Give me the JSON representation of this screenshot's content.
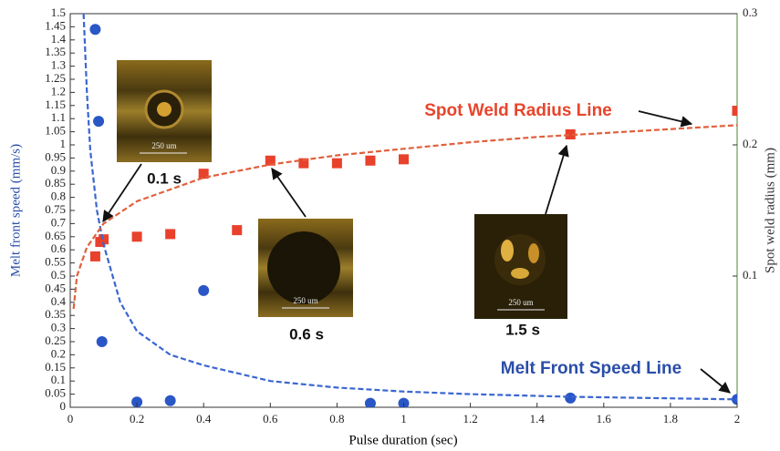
{
  "chart_data": {
    "type": "scatter",
    "xlabel": "Pulse duration (sec)",
    "ylabel": "Melt front speed (mm/s)",
    "y2label": "Spot weld radius (mm)",
    "xlim": [
      0,
      2
    ],
    "xticks": [
      0,
      0.2,
      0.4,
      0.6,
      0.8,
      1,
      1.2,
      1.4,
      1.6,
      1.8,
      2
    ],
    "ylim": [
      0,
      1.5
    ],
    "yticks": [
      0,
      0.05,
      0.1,
      0.15,
      0.2,
      0.25,
      0.3,
      0.35,
      0.4,
      0.45,
      0.5,
      0.55,
      0.6,
      0.65,
      0.7,
      0.75,
      0.8,
      0.85,
      0.9,
      0.95,
      1,
      1.05,
      1.1,
      1.15,
      1.2,
      1.25,
      1.3,
      1.35,
      1.4,
      1.45,
      1.5
    ],
    "y2lim": [
      0,
      0.3
    ],
    "y2ticks": [
      0.1,
      0.2,
      0.3
    ],
    "series": [
      {
        "color": "#2a56c6",
        "marker": "circle",
        "x": [
          0.075,
          0.085,
          0.095,
          0.2,
          0.3,
          0.4,
          0.9,
          1.0,
          1.5,
          2.0
        ],
        "values": [
          1.44,
          1.09,
          0.25,
          0.02,
          0.025,
          0.445,
          0.015,
          0.015,
          0.035,
          0.03
        ]
      },
      {
        "color": "#e8412c",
        "marker": "square",
        "axis": "y2",
        "x": [
          0.075,
          0.09,
          0.1,
          0.2,
          0.3,
          0.4,
          0.5,
          0.6,
          0.7,
          0.8,
          0.9,
          1.0,
          1.5,
          2.0
        ],
        "values": [
          0.115,
          0.126,
          0.128,
          0.13,
          0.132,
          0.178,
          0.135,
          0.188,
          0.186,
          0.186,
          0.188,
          0.189,
          0.208,
          0.226
        ]
      },
      {
        "color": "#3a66d0",
        "marker": "dashed-line",
        "x": [
          0.04,
          0.05,
          0.06,
          0.08,
          0.1,
          0.15,
          0.2,
          0.3,
          0.4,
          0.6,
          0.8,
          1.0,
          1.2,
          1.5,
          2.0
        ],
        "values": [
          1.5,
          1.2,
          0.98,
          0.75,
          0.62,
          0.4,
          0.29,
          0.2,
          0.16,
          0.1,
          0.075,
          0.06,
          0.05,
          0.04,
          0.03
        ]
      },
      {
        "color": "#e0603c",
        "marker": "dashed-line",
        "axis": "y2",
        "x": [
          0.01,
          0.02,
          0.05,
          0.1,
          0.2,
          0.4,
          0.6,
          0.8,
          1.0,
          1.2,
          1.4,
          1.6,
          1.8,
          2.0
        ],
        "values": [
          0.075,
          0.1,
          0.122,
          0.14,
          0.157,
          0.175,
          0.185,
          0.192,
          0.197,
          0.202,
          0.206,
          0.209,
          0.212,
          0.215
        ]
      }
    ],
    "annotations": [
      "Spot Weld Radius Line",
      "Melt Front Speed Line"
    ],
    "insets": [
      {
        "label": "0.1 s",
        "scale": "250 um"
      },
      {
        "label": "0.6 s",
        "scale": "250 um"
      },
      {
        "label": "1.5 s",
        "scale": "250 um"
      }
    ]
  }
}
